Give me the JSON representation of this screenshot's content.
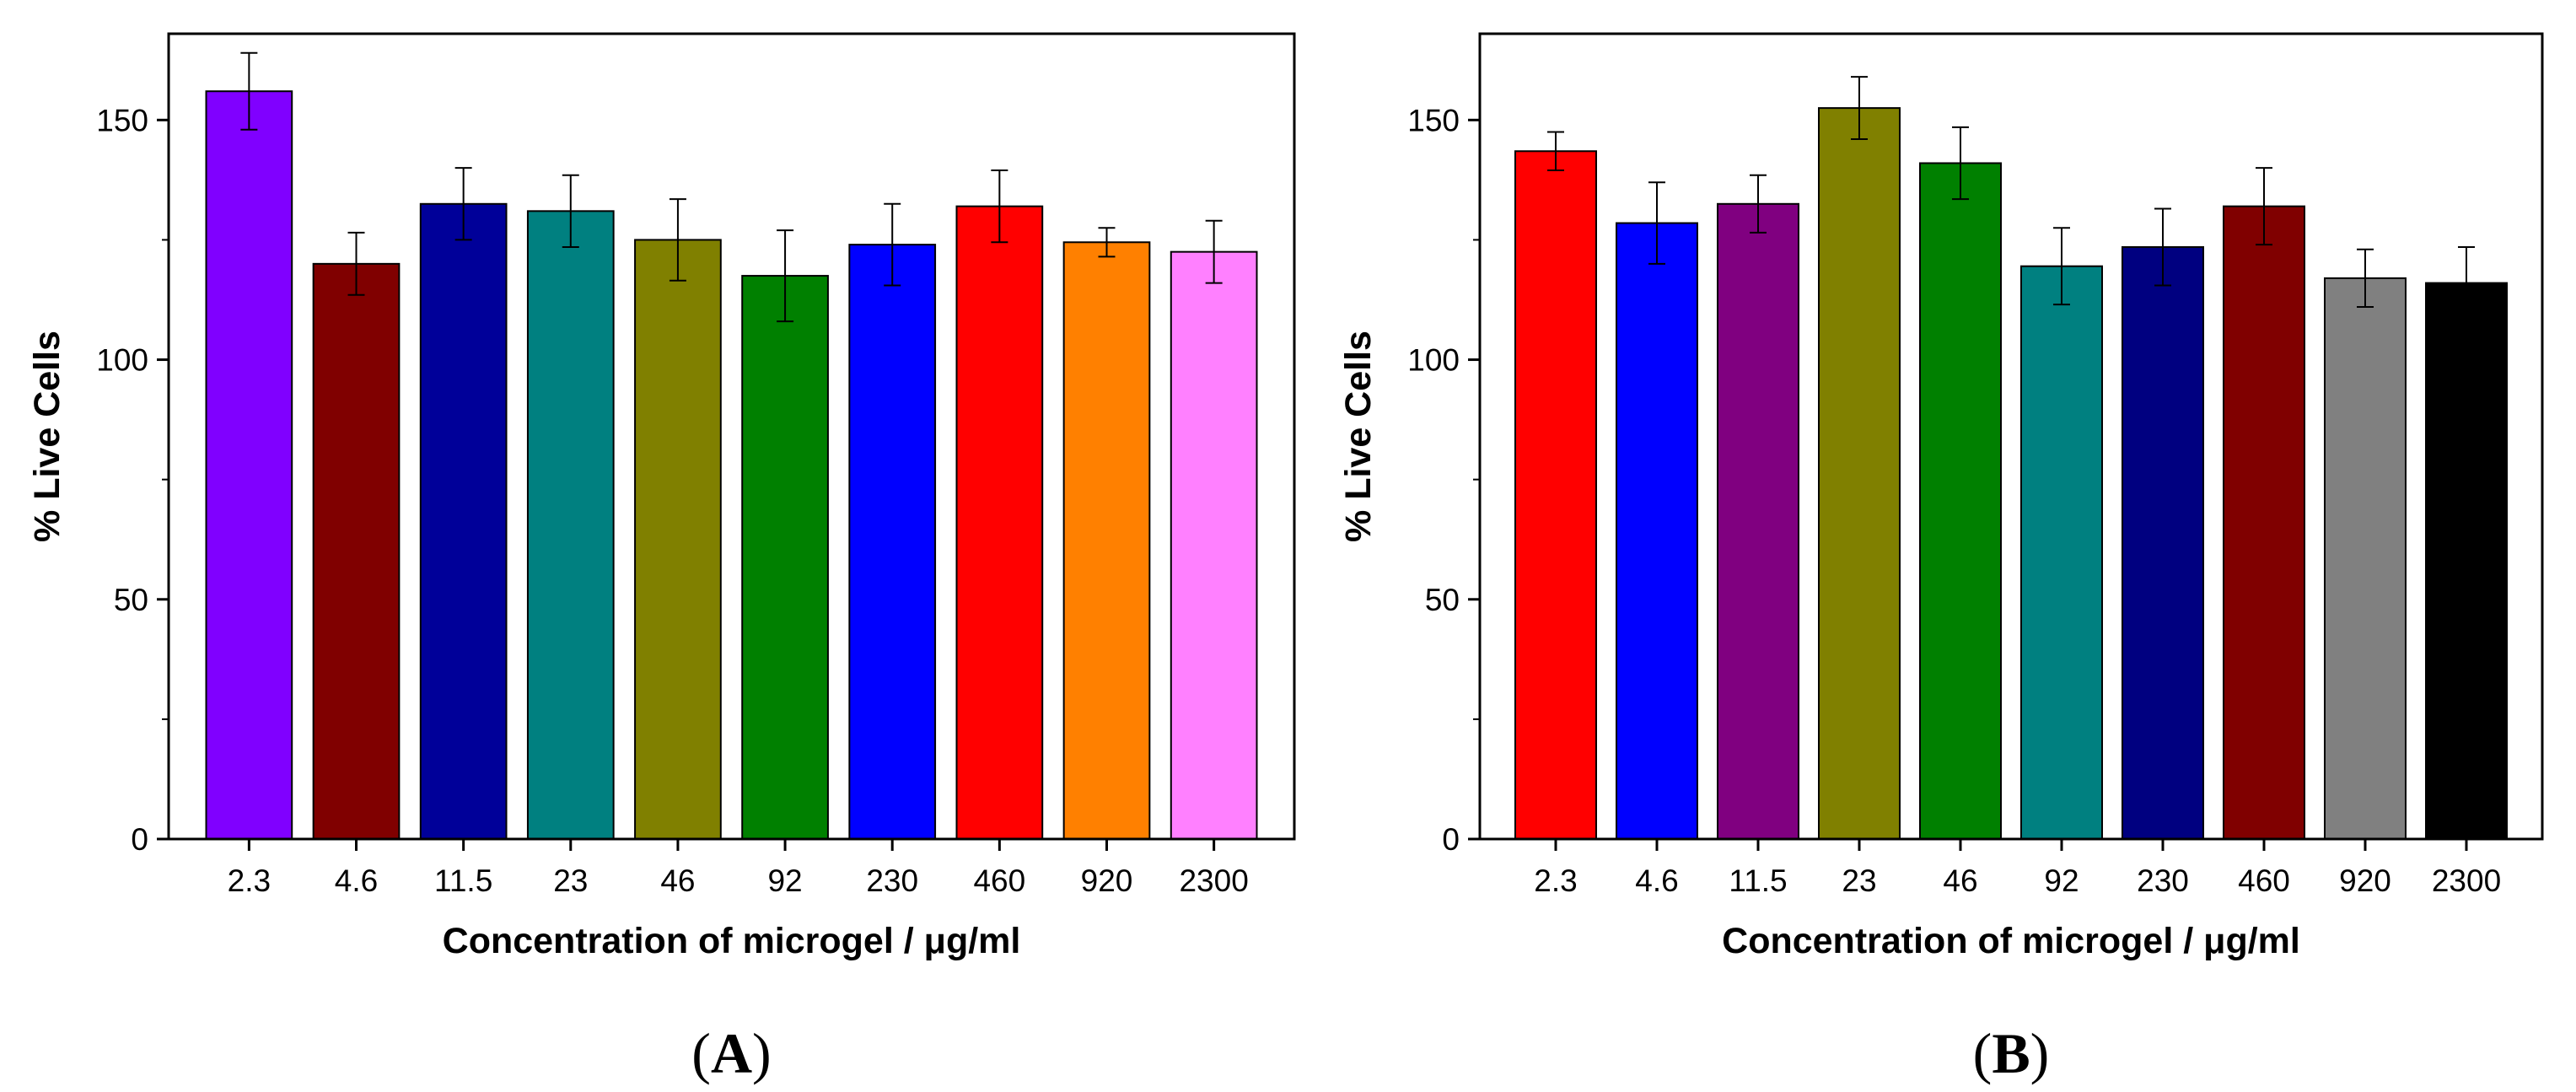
{
  "chart_data": [
    {
      "type": "bar",
      "panel_label": "A",
      "title": "",
      "xlabel": "Concentration of microgel / μg/ml",
      "ylabel": "% Live Cells",
      "categories": [
        "2.3",
        "4.6",
        "11.5",
        "23",
        "46",
        "92",
        "230",
        "460",
        "920",
        "2300"
      ],
      "values": [
        156,
        120,
        132.5,
        131,
        125,
        117.5,
        124,
        132,
        124.5,
        122.5
      ],
      "errors": [
        8,
        6.5,
        7.5,
        7.5,
        8.5,
        9.5,
        8.5,
        7.5,
        3,
        6.5
      ],
      "colors": [
        "#8000ff",
        "#800000",
        "#000099",
        "#008080",
        "#808000",
        "#008000",
        "#0000ff",
        "#ff0000",
        "#ff8000",
        "#ff80ff"
      ],
      "ylim": [
        0,
        168
      ],
      "yticks": [
        0,
        50,
        100,
        150
      ],
      "grid": false
    },
    {
      "type": "bar",
      "panel_label": "B",
      "title": "",
      "xlabel": "Concentration of microgel / μg/ml",
      "ylabel": "% Live Cells",
      "categories": [
        "2.3",
        "4.6",
        "11.5",
        "23",
        "46",
        "92",
        "230",
        "460",
        "920",
        "2300"
      ],
      "values": [
        143.5,
        128.5,
        132.5,
        152.5,
        141,
        119.5,
        123.5,
        132,
        117,
        116
      ],
      "errors": [
        4,
        8.5,
        6,
        6.5,
        7.5,
        8,
        8,
        8,
        6,
        7.5
      ],
      "colors": [
        "#ff0000",
        "#0000ff",
        "#800080",
        "#808000",
        "#008000",
        "#008080",
        "#000080",
        "#800000",
        "#808080",
        "#000000"
      ],
      "ylim": [
        0,
        168
      ],
      "yticks": [
        0,
        50,
        100,
        150
      ],
      "grid": false
    }
  ]
}
